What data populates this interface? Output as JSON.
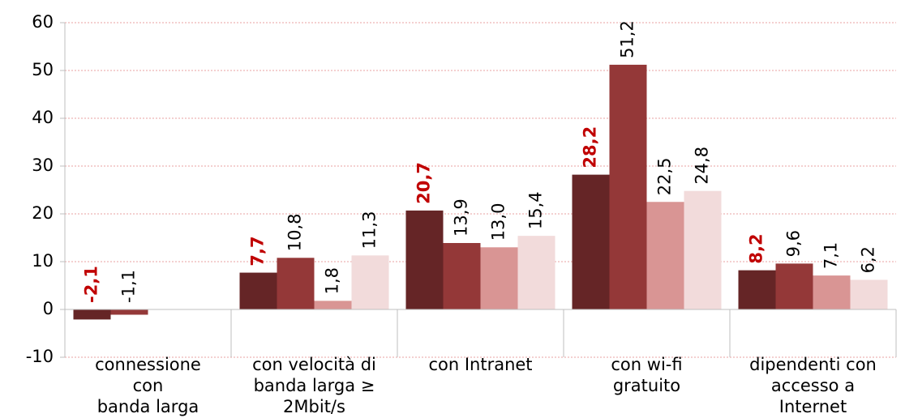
{
  "chart_data": {
    "type": "bar",
    "categories": [
      [
        "connessione",
        "con",
        "banda larga"
      ],
      [
        "con velocità di",
        "banda larga ≥",
        "2Mbit/s"
      ],
      [
        "con Intranet"
      ],
      [
        "con wi-fi",
        "gratuito"
      ],
      [
        "dipendenti con",
        "accesso a",
        "Internet"
      ]
    ],
    "series": [
      {
        "color": "#652526",
        "label_color": "#c00000",
        "label_bold": true,
        "values": [
          -2.1,
          7.7,
          20.7,
          28.2,
          8.2
        ],
        "value_labels": [
          "-2,1",
          "7,7",
          "20,7",
          "28,2",
          "8,2"
        ]
      },
      {
        "color": "#943838",
        "values": [
          -1.1,
          10.8,
          13.9,
          51.2,
          9.6
        ],
        "value_labels": [
          "-1,1",
          "10,8",
          "13,9",
          "51,2",
          "9,6"
        ]
      },
      {
        "color": "#d99594",
        "values": [
          null,
          1.8,
          13.0,
          22.5,
          7.1
        ],
        "value_labels": [
          null,
          "1,8",
          "13,0",
          "22,5",
          "7,1"
        ]
      },
      {
        "color": "#f2dbdb",
        "values": [
          null,
          11.3,
          15.4,
          24.8,
          6.2
        ],
        "value_labels": [
          null,
          "11,3",
          "15,4",
          "24,8",
          "6,2"
        ]
      }
    ],
    "ylim": [
      -10,
      60
    ],
    "yticks": [
      -10,
      0,
      10,
      20,
      30,
      40,
      50,
      60
    ],
    "grid": true
  }
}
